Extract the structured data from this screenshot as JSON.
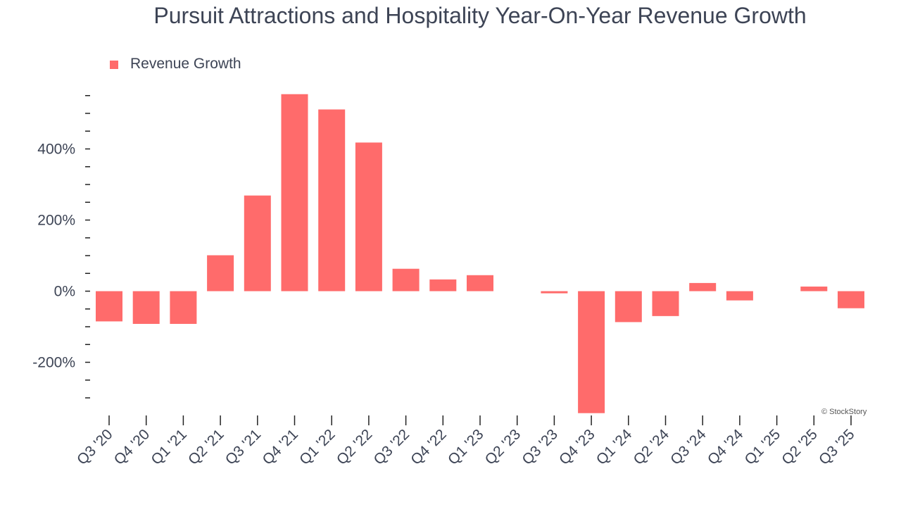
{
  "chart_data": {
    "type": "bar",
    "title": "Pursuit Attractions and Hospitality Year-On-Year Revenue Growth",
    "legend": {
      "entries": [
        "Revenue Growth"
      ],
      "placement": "top-left"
    },
    "categories": [
      "Q3 '20",
      "Q4 '20",
      "Q1 '21",
      "Q2 '21",
      "Q3 '21",
      "Q4 '21",
      "Q1 '22",
      "Q2 '22",
      "Q3 '22",
      "Q4 '22",
      "Q1 '23",
      "Q2 '23",
      "Q3 '23",
      "Q4 '23",
      "Q1 '24",
      "Q2 '24",
      "Q3 '24",
      "Q4 '24",
      "Q1 '25",
      "Q2 '25",
      "Q3 '25"
    ],
    "series": [
      {
        "name": "Revenue Growth",
        "color": "#ff6b6b",
        "values": [
          -85,
          -92,
          -92,
          101,
          269,
          554,
          511,
          418,
          63,
          33,
          45,
          0,
          -6,
          -343,
          -87,
          -70,
          23,
          -26,
          0,
          13,
          -48
        ]
      }
    ],
    "yticks": [
      {
        "value": 400,
        "label": "400%"
      },
      {
        "value": 200,
        "label": "200%"
      },
      {
        "value": 0,
        "label": "0%"
      },
      {
        "value": -200,
        "label": "-200%"
      }
    ],
    "ylim": [
      -350,
      560
    ],
    "grid": false,
    "xlabel": "",
    "ylabel": ""
  },
  "credit": "© StockStory"
}
